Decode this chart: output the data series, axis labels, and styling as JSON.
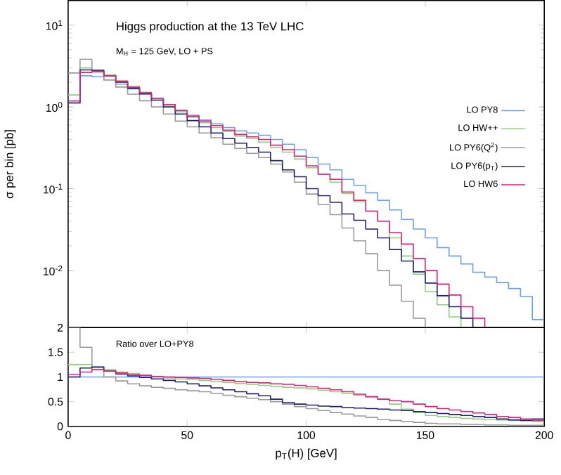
{
  "chart_data": [
    {
      "type": "histogram",
      "title": "Higgs production at the 13 TeV LHC",
      "subtitle": "M$_{H}$ = 125 GeV, LO + PS",
      "ylabel": "σ per bin [pb]",
      "bins": [
        0,
        5,
        10,
        15,
        20,
        25,
        30,
        35,
        40,
        45,
        50,
        55,
        60,
        65,
        70,
        75,
        80,
        85,
        90,
        95,
        100,
        105,
        110,
        115,
        120,
        125,
        130,
        135,
        140,
        145,
        150,
        155,
        160,
        165,
        170,
        175,
        180,
        185,
        190,
        195,
        200
      ],
      "series": [
        {
          "name": "LO PY8",
          "color": "#6f9ff0",
          "values": [
            1.12,
            2.4,
            2.34,
            2.14,
            1.9,
            1.66,
            1.45,
            1.26,
            1.07,
            0.91,
            0.79,
            0.69,
            0.62,
            0.56,
            0.51,
            0.48,
            0.45,
            0.4,
            0.35,
            0.3,
            0.24,
            0.2,
            0.17,
            0.13,
            0.11,
            0.089,
            0.072,
            0.055,
            0.042,
            0.032,
            0.025,
            0.019,
            0.015,
            0.012,
            0.0095,
            0.0083,
            0.0071,
            0.006,
            0.0048,
            0.0025
          ]
        },
        {
          "name": "LO HW++",
          "color": "#8fd07f",
          "values": [
            1.4,
            3.0,
            2.8,
            2.46,
            2.09,
            1.78,
            1.51,
            1.27,
            1.05,
            0.87,
            0.75,
            0.64,
            0.56,
            0.5,
            0.44,
            0.41,
            0.37,
            0.32,
            0.28,
            0.23,
            0.18,
            0.15,
            0.12,
            0.087,
            0.069,
            0.053,
            0.04,
            0.025,
            0.015,
            0.009,
            0.0055,
            0.0038,
            0.0027,
            null,
            null,
            null,
            null,
            null,
            null,
            null
          ]
        },
        {
          "name": "LO PY6(Q$^{2}$)",
          "color": "#999999",
          "values": [
            2.6,
            3.84,
            2.69,
            2.14,
            1.75,
            1.43,
            1.19,
            1.0,
            0.82,
            0.67,
            0.57,
            0.48,
            0.42,
            0.35,
            0.31,
            0.27,
            0.24,
            0.2,
            0.16,
            0.12,
            0.086,
            0.064,
            0.048,
            0.033,
            0.023,
            0.016,
            0.01,
            0.0066,
            0.0042,
            0.0026,
            null,
            null,
            null,
            null,
            null,
            null,
            null,
            null,
            null,
            null
          ]
        },
        {
          "name": "LO PY6(p$_{T}$)",
          "color": "#202070",
          "values": [
            1.12,
            2.83,
            2.81,
            2.4,
            2.01,
            1.69,
            1.44,
            1.21,
            1.0,
            0.82,
            0.68,
            0.57,
            0.48,
            0.41,
            0.36,
            0.32,
            0.28,
            0.22,
            0.17,
            0.14,
            0.1,
            0.082,
            0.068,
            0.049,
            0.041,
            0.032,
            0.025,
            0.018,
            0.013,
            0.0096,
            0.007,
            0.0049,
            0.0036,
            0.0026,
            null,
            null,
            null,
            null,
            null,
            null
          ]
        },
        {
          "name": "LO HW6",
          "color": "#e0207a",
          "values": [
            1.18,
            2.64,
            2.69,
            2.4,
            2.05,
            1.74,
            1.49,
            1.27,
            1.07,
            0.9,
            0.77,
            0.67,
            0.59,
            0.52,
            0.46,
            0.43,
            0.4,
            0.34,
            0.3,
            0.25,
            0.19,
            0.15,
            0.13,
            0.091,
            0.072,
            0.053,
            0.04,
            0.029,
            0.021,
            0.014,
            0.01,
            0.0068,
            0.005,
            0.0036,
            0.0026,
            null,
            null,
            null,
            null,
            null
          ]
        }
      ],
      "log": "y",
      "xlim": [
        0,
        200
      ],
      "xticks": [
        0,
        50,
        100,
        150,
        200
      ],
      "ylim": [
        0.002,
        20
      ],
      "yticks": [
        {
          "value": 0.01,
          "label": "10$^{-2}$"
        },
        {
          "value": 0.1,
          "label": "10$^{-1}$"
        },
        {
          "value": 1,
          "label": "10$^{0}$"
        },
        {
          "value": 10,
          "label": "10$^{1}$"
        }
      ],
      "tick_labels": "y",
      "legend": "right"
    },
    {
      "type": "histogram",
      "xlabel": "p$_{T}$(H) [GeV]",
      "annotations": [
        "Ratio over LO+PY8"
      ],
      "bins": [
        0,
        5,
        10,
        15,
        20,
        25,
        30,
        35,
        40,
        45,
        50,
        55,
        60,
        65,
        70,
        75,
        80,
        85,
        90,
        95,
        100,
        105,
        110,
        115,
        120,
        125,
        130,
        135,
        140,
        145,
        150,
        155,
        160,
        165,
        170,
        175,
        180,
        185,
        190,
        195,
        200
      ],
      "series": [
        {
          "color": "#8fd07f",
          "values": [
            1.25,
            1.25,
            1.2,
            1.15,
            1.1,
            1.07,
            1.04,
            1.01,
            0.98,
            0.96,
            0.95,
            0.93,
            0.91,
            0.89,
            0.87,
            0.85,
            0.83,
            0.81,
            0.79,
            0.78,
            0.76,
            0.73,
            0.7,
            0.67,
            0.63,
            0.6,
            0.55,
            0.45,
            0.35,
            0.28,
            0.22,
            0.2,
            0.18,
            0.16,
            0.15,
            0.14,
            0.13,
            0.12,
            0.12,
            0.1
          ]
        },
        {
          "color": "#999999",
          "values": [
            2,
            1.6,
            1.15,
            1.0,
            0.92,
            0.86,
            0.82,
            0.79,
            0.77,
            0.74,
            0.72,
            0.7,
            0.67,
            0.63,
            0.6,
            0.57,
            0.54,
            0.5,
            0.45,
            0.4,
            0.36,
            0.32,
            0.28,
            0.25,
            0.21,
            0.18,
            0.14,
            0.12,
            0.1,
            0.08,
            0.06,
            0.05,
            0.05,
            0.04,
            0.04,
            0.03,
            0.03,
            0.02,
            0.02,
            0.02
          ]
        },
        {
          "color": "#202070",
          "values": [
            1.0,
            1.18,
            1.2,
            1.12,
            1.06,
            1.02,
            0.99,
            0.96,
            0.93,
            0.9,
            0.86,
            0.82,
            0.78,
            0.74,
            0.7,
            0.66,
            0.62,
            0.55,
            0.48,
            0.45,
            0.43,
            0.41,
            0.4,
            0.38,
            0.37,
            0.36,
            0.35,
            0.33,
            0.32,
            0.3,
            0.28,
            0.26,
            0.24,
            0.22,
            0.2,
            0.18,
            0.15,
            0.13,
            0.12,
            0.15
          ]
        },
        {
          "color": "#e0207a",
          "values": [
            1.05,
            1.1,
            1.15,
            1.12,
            1.08,
            1.05,
            1.03,
            1.01,
            1.0,
            0.99,
            0.98,
            0.97,
            0.95,
            0.93,
            0.91,
            0.89,
            0.88,
            0.86,
            0.85,
            0.83,
            0.8,
            0.77,
            0.74,
            0.7,
            0.65,
            0.6,
            0.55,
            0.52,
            0.5,
            0.45,
            0.4,
            0.36,
            0.33,
            0.3,
            0.27,
            0.24,
            0.2,
            0.18,
            0.15,
            0.12
          ]
        }
      ],
      "ref_lines": [
        {
          "axis": "y",
          "value": 1,
          "color": "#6f9ff0"
        }
      ],
      "xlim": [
        0,
        200
      ],
      "xticks": [
        0,
        50,
        100,
        150,
        200
      ],
      "ylim": [
        0,
        2
      ],
      "yticks": [
        0,
        0.5,
        1,
        1.5,
        2
      ]
    }
  ]
}
